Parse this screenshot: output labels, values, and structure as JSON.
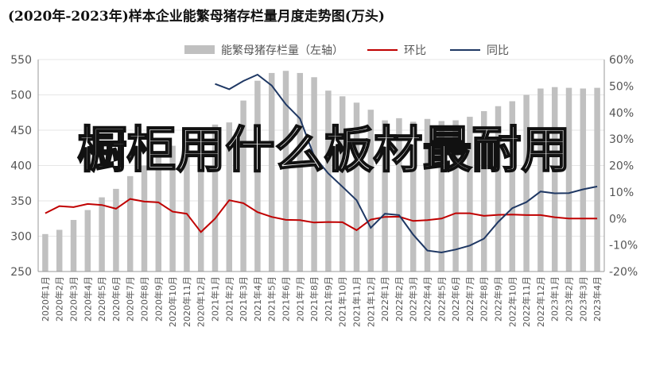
{
  "title": "(2020年-2023年)样本企业能繁母猪存栏量月度走势图(万头)",
  "overlay_text": "橱柜用什么板材最耐用",
  "chart_data": {
    "type": "bar+line",
    "title": "(2020年-2023年)样本企业能繁母猪存栏量月度走势图(万头)",
    "categories": [
      "2020年1月",
      "2020年2月",
      "2020年3月",
      "2020年4月",
      "2020年5月",
      "2020年6月",
      "2020年7月",
      "2020年8月",
      "2020年9月",
      "2020年10月",
      "2020年11月",
      "2020年12月",
      "2021年1月",
      "2021年2月",
      "2021年3月",
      "2021年4月",
      "2021年5月",
      "2021年6月",
      "2021年7月",
      "2021年8月",
      "2021年9月",
      "2021年10月",
      "2021年11月",
      "2021年12月",
      "2022年1月",
      "2022年2月",
      "2022年3月",
      "2022年4月",
      "2022年5月",
      "2022年6月",
      "2022年7月",
      "2022年8月",
      "2022年9月",
      "2022年10月",
      "2022年11月",
      "2022年12月",
      "2023年1月",
      "2023年2月",
      "2023年3月",
      "2023年4月"
    ],
    "y_left": {
      "min": 250,
      "max": 550,
      "step": 50,
      "ticks": [
        "250",
        "300",
        "350",
        "400",
        "450",
        "500",
        "550"
      ]
    },
    "y_right": {
      "min": -20,
      "max": 60,
      "step": 10,
      "ticks": [
        "-20%",
        "-10%",
        "0%",
        "10%",
        "20%",
        "30%",
        "40%",
        "50%",
        "60%"
      ]
    },
    "legend_position": "top",
    "series": [
      {
        "name": "能繁母猪存栏量（左轴）",
        "kind": "bar",
        "axis": "left",
        "color": "#c0c0c0",
        "values": [
          303,
          309,
          323,
          337,
          355,
          367,
          385,
          400,
          415,
          428,
          438,
          443,
          458,
          461,
          492,
          520,
          531,
          534,
          531,
          525,
          506,
          498,
          489,
          479,
          464,
          467,
          462,
          466,
          463,
          464,
          469,
          477,
          484,
          491,
          500,
          509,
          511,
          510,
          509,
          510
        ]
      },
      {
        "name": "环比",
        "kind": "line",
        "axis": "right",
        "color": "#c00000",
        "values": [
          2,
          4.7,
          4.3,
          5.5,
          5.1,
          3.7,
          7.4,
          6.4,
          6.1,
          2.6,
          1.8,
          -5.1,
          0,
          6.9,
          5.8,
          2.4,
          0.6,
          -0.5,
          -0.6,
          -1.5,
          -1.3,
          -1.4,
          -4.4,
          -0.4,
          0.6,
          0.7,
          -0.9,
          -0.6,
          0,
          2,
          2,
          1,
          1.4,
          1.5,
          1.3,
          1.3,
          0.5,
          0,
          0,
          0
        ]
      },
      {
        "name": "同比",
        "kind": "line",
        "axis": "right",
        "color": "#1f3864",
        "values": [
          null,
          null,
          null,
          null,
          null,
          null,
          null,
          null,
          null,
          null,
          null,
          null,
          50.8,
          48.8,
          51.9,
          54.3,
          50.2,
          43.1,
          37.7,
          23.5,
          17,
          12,
          6.9,
          -3.5,
          1.8,
          1.3,
          -6.1,
          -12.1,
          -12.8,
          -11.7,
          -10.2,
          -7.6,
          -1.3,
          3.9,
          6.2,
          10.2,
          9.5,
          9.6,
          11,
          12.1
        ]
      }
    ]
  }
}
